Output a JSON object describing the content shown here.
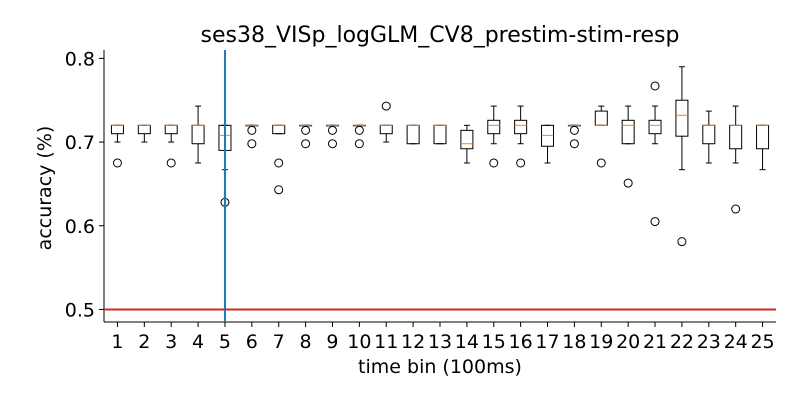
{
  "chart_data": {
    "type": "box",
    "title": "ses38_VISp_logGLM_CV8_prestim-stim-resp",
    "xlabel": "time bin (100ms)",
    "ylabel": "accuracy (%)",
    "ylim": [
      0.485,
      0.81
    ],
    "yticks": [
      0.5,
      0.6,
      0.7,
      0.8
    ],
    "ytick_labels": [
      "0.5",
      "0.6",
      "0.7",
      "0.8"
    ],
    "categories": [
      "1",
      "2",
      "3",
      "4",
      "5",
      "6",
      "7",
      "8",
      "9",
      "10",
      "11",
      "12",
      "13",
      "14",
      "15",
      "16",
      "17",
      "18",
      "19",
      "20",
      "21",
      "22",
      "23",
      "24",
      "25"
    ],
    "boxes": [
      {
        "whislo": 0.7,
        "q1": 0.71,
        "med": 0.72,
        "q3": 0.72,
        "whishi": 0.72,
        "fliers": [
          0.675
        ]
      },
      {
        "whislo": 0.7,
        "q1": 0.71,
        "med": 0.72,
        "q3": 0.72,
        "whishi": 0.72,
        "fliers": []
      },
      {
        "whislo": 0.7,
        "q1": 0.71,
        "med": 0.72,
        "q3": 0.72,
        "whishi": 0.72,
        "fliers": [
          0.675
        ]
      },
      {
        "whislo": 0.675,
        "q1": 0.698,
        "med": 0.72,
        "q3": 0.72,
        "whishi": 0.743,
        "fliers": []
      },
      {
        "whislo": 0.667,
        "q1": 0.69,
        "med": 0.708,
        "q3": 0.72,
        "whishi": 0.72,
        "fliers": [
          0.628
        ]
      },
      {
        "whislo": 0.72,
        "q1": 0.72,
        "med": 0.72,
        "q3": 0.72,
        "whishi": 0.72,
        "fliers": [
          0.698,
          0.714
        ]
      },
      {
        "whislo": 0.71,
        "q1": 0.71,
        "med": 0.72,
        "q3": 0.72,
        "whishi": 0.72,
        "fliers": [
          0.643,
          0.675
        ]
      },
      {
        "whislo": 0.72,
        "q1": 0.72,
        "med": 0.72,
        "q3": 0.72,
        "whishi": 0.72,
        "fliers": [
          0.698,
          0.714
        ]
      },
      {
        "whislo": 0.72,
        "q1": 0.72,
        "med": 0.72,
        "q3": 0.72,
        "whishi": 0.72,
        "fliers": [
          0.698,
          0.714
        ]
      },
      {
        "whislo": 0.72,
        "q1": 0.72,
        "med": 0.72,
        "q3": 0.72,
        "whishi": 0.72,
        "fliers": [
          0.698,
          0.714
        ]
      },
      {
        "whislo": 0.7,
        "q1": 0.71,
        "med": 0.72,
        "q3": 0.72,
        "whishi": 0.72,
        "fliers": [
          0.743
        ]
      },
      {
        "whislo": 0.698,
        "q1": 0.698,
        "med": 0.72,
        "q3": 0.72,
        "whishi": 0.72,
        "fliers": []
      },
      {
        "whislo": 0.698,
        "q1": 0.698,
        "med": 0.72,
        "q3": 0.72,
        "whishi": 0.72,
        "fliers": []
      },
      {
        "whislo": 0.675,
        "q1": 0.692,
        "med": 0.698,
        "q3": 0.714,
        "whishi": 0.72,
        "fliers": []
      },
      {
        "whislo": 0.698,
        "q1": 0.71,
        "med": 0.72,
        "q3": 0.726,
        "whishi": 0.743,
        "fliers": [
          0.675
        ]
      },
      {
        "whislo": 0.698,
        "q1": 0.71,
        "med": 0.72,
        "q3": 0.726,
        "whishi": 0.743,
        "fliers": [
          0.675
        ]
      },
      {
        "whislo": 0.675,
        "q1": 0.695,
        "med": 0.708,
        "q3": 0.72,
        "whishi": 0.72,
        "fliers": []
      },
      {
        "whislo": 0.72,
        "q1": 0.72,
        "med": 0.72,
        "q3": 0.72,
        "whishi": 0.72,
        "fliers": [
          0.698,
          0.714
        ]
      },
      {
        "whislo": 0.72,
        "q1": 0.72,
        "med": 0.72,
        "q3": 0.737,
        "whishi": 0.743,
        "fliers": [
          0.675
        ]
      },
      {
        "whislo": 0.698,
        "q1": 0.698,
        "med": 0.72,
        "q3": 0.726,
        "whishi": 0.743,
        "fliers": [
          0.651
        ]
      },
      {
        "whislo": 0.698,
        "q1": 0.71,
        "med": 0.72,
        "q3": 0.726,
        "whishi": 0.743,
        "fliers": [
          0.605,
          0.767
        ]
      },
      {
        "whislo": 0.667,
        "q1": 0.707,
        "med": 0.732,
        "q3": 0.75,
        "whishi": 0.79,
        "fliers": [
          0.581
        ]
      },
      {
        "whislo": 0.675,
        "q1": 0.698,
        "med": 0.72,
        "q3": 0.72,
        "whishi": 0.737,
        "fliers": []
      },
      {
        "whislo": 0.675,
        "q1": 0.692,
        "med": 0.72,
        "q3": 0.72,
        "whishi": 0.743,
        "fliers": [
          0.62
        ]
      },
      {
        "whislo": 0.667,
        "q1": 0.692,
        "med": 0.72,
        "q3": 0.72,
        "whishi": 0.72,
        "fliers": []
      }
    ],
    "hline": {
      "y": 0.5,
      "color": "#d62728"
    },
    "vline": {
      "x": 5,
      "color": "#1f77b4"
    },
    "colors": {
      "box": "#000000",
      "median": "#ff7f0e"
    },
    "grid": false
  }
}
